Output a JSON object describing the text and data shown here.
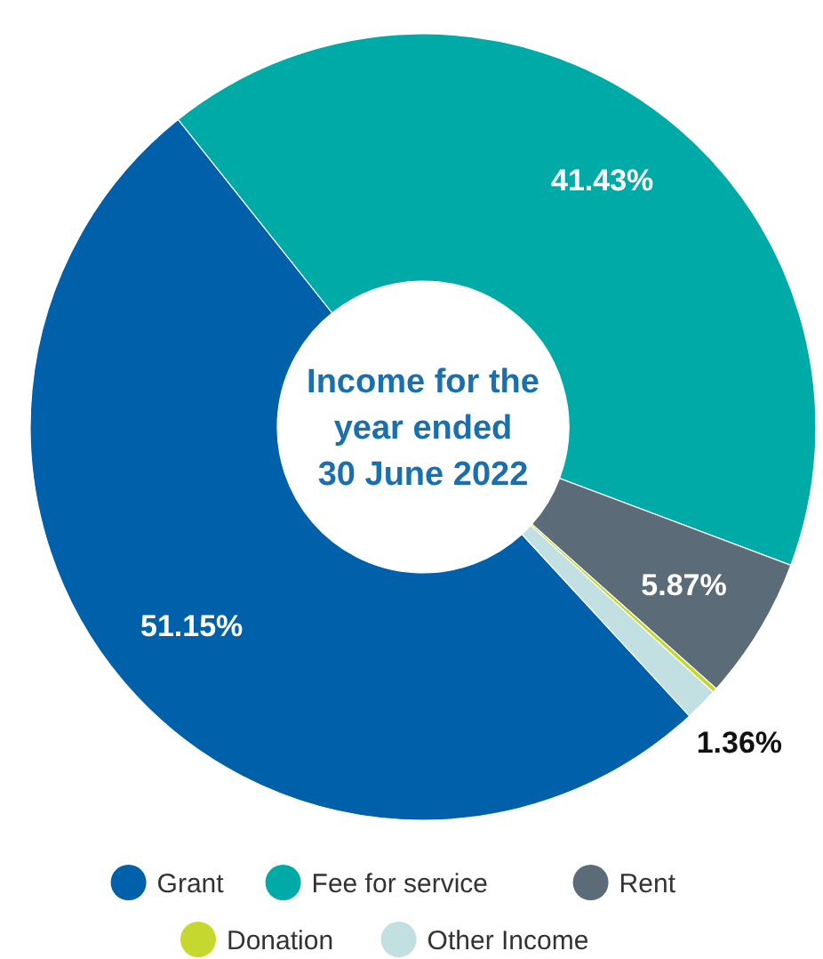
{
  "chart_data": {
    "type": "donut",
    "title": "Income for the year ended 30 June 2022",
    "categories": [
      "Grant",
      "Fee for service",
      "Rent",
      "Donation",
      "Other Income"
    ],
    "values": [
      51.15,
      41.43,
      5.87,
      0.19,
      1.36
    ],
    "value_labels": [
      "51.15%",
      "41.43%",
      "5.87%",
      null,
      "1.36%"
    ],
    "colors": [
      "#0061aa",
      "#00aaa6",
      "#5b6b78",
      "#c6d82e",
      "#c2e0e1"
    ],
    "legend": "bottom"
  }
}
